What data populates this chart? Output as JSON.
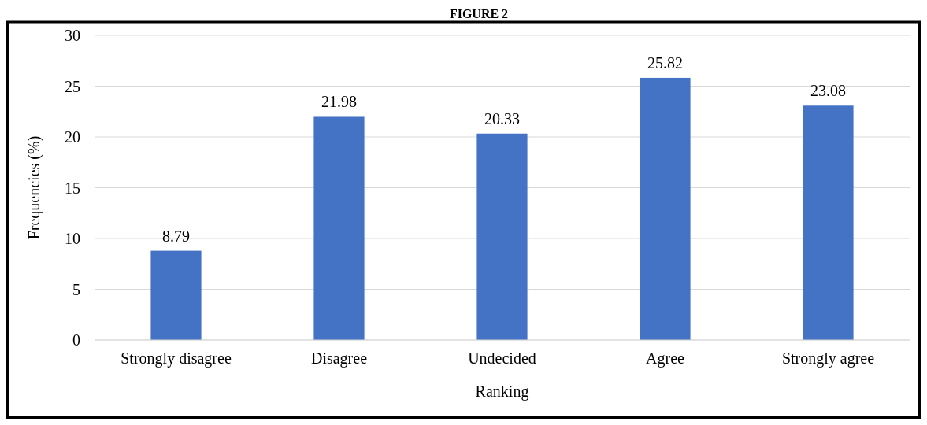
{
  "chart_data": {
    "type": "bar",
    "title": "FIGURE 2",
    "xlabel": "Ranking",
    "ylabel": "Frequencies (%)",
    "categories": [
      "Strongly disagree",
      "Disagree",
      "Undecided",
      "Agree",
      "Strongly agree"
    ],
    "values": [
      8.79,
      21.98,
      20.33,
      25.82,
      23.08
    ],
    "color": "#4472c4",
    "ylim": [
      0,
      30
    ],
    "yticks": [
      0,
      5,
      10,
      15,
      20,
      25,
      30
    ],
    "grid": "y",
    "data_labels": true
  }
}
